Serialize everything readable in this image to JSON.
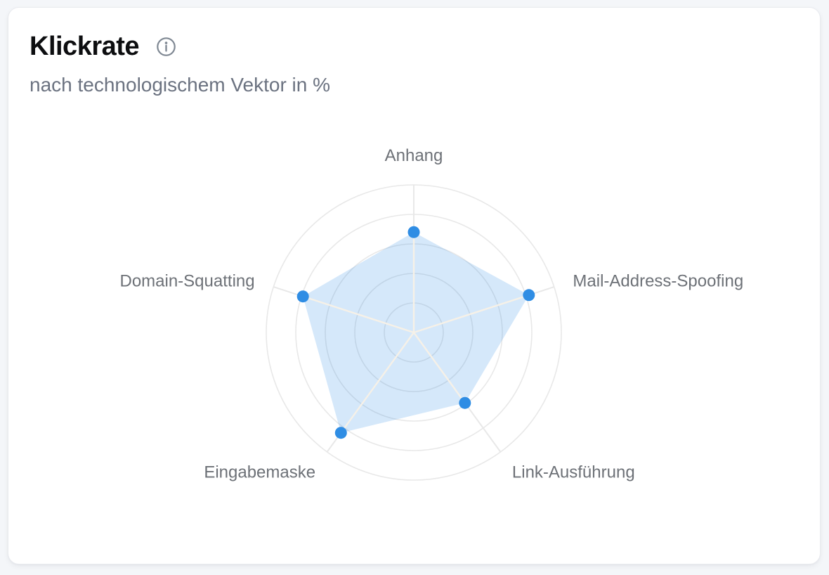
{
  "card": {
    "title": "Klickrate",
    "subtitle": "nach technologischem Vektor in %",
    "info_icon": "info-circle-icon"
  },
  "colors": {
    "accent": "#2f8de4",
    "area_fill_opacity": 0.2,
    "grid": "#e8e8e8",
    "spoke_highlight": "#f6f1e8",
    "axis_label": "#6d7177",
    "title_text": "#0d0e10",
    "subtitle_text": "#6b7280",
    "icon": "#7f8893",
    "page_background": "#f4f6f9",
    "card_background": "#ffffff",
    "card_border": "#e9ebef"
  },
  "chart_data": {
    "type": "radar",
    "title": "Klickrate",
    "subtitle": "nach technologischem Vektor in %",
    "categories": [
      "Anhang",
      "Mail-Address-Spoofing",
      "Link-Ausführung",
      "Eingabemaske",
      "Domain-Squatting"
    ],
    "series": [
      {
        "name": "Klickrate",
        "values": [
          68,
          82,
          59,
          84,
          79
        ]
      }
    ],
    "rmin": 0,
    "rmax": 100,
    "ring_count": 5,
    "ring_step": 20,
    "grid_shape": "circular",
    "tick_labels_visible": false,
    "legend": "none",
    "start_axis": "top",
    "direction": "clockwise"
  }
}
